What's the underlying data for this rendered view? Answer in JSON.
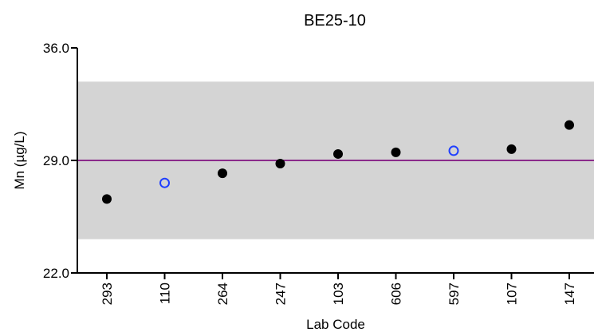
{
  "chart_data": {
    "type": "scatter",
    "title": "BE25-10",
    "xlabel": "Lab Code",
    "ylabel": "Mn (µg/L)",
    "ylim": [
      22.0,
      36.0
    ],
    "yticks": [
      "36.0",
      "29.0",
      "22.0"
    ],
    "categories": [
      "293",
      "110",
      "264",
      "247",
      "103",
      "606",
      "597",
      "107",
      "147"
    ],
    "values": [
      26.6,
      27.6,
      28.2,
      28.8,
      29.4,
      29.5,
      29.6,
      29.7,
      31.2
    ],
    "point_style": [
      "filled",
      "open",
      "filled",
      "filled",
      "filled",
      "filled",
      "open",
      "filled",
      "filled"
    ],
    "reference_value": 29.0,
    "acceptance_range": [
      24.1,
      33.9
    ],
    "grid": false,
    "colors": {
      "filled_point": "#000000",
      "open_point": "#1f3fff",
      "reference_line": "#8b2a8b",
      "acceptance_band": "#d4d4d4"
    }
  }
}
